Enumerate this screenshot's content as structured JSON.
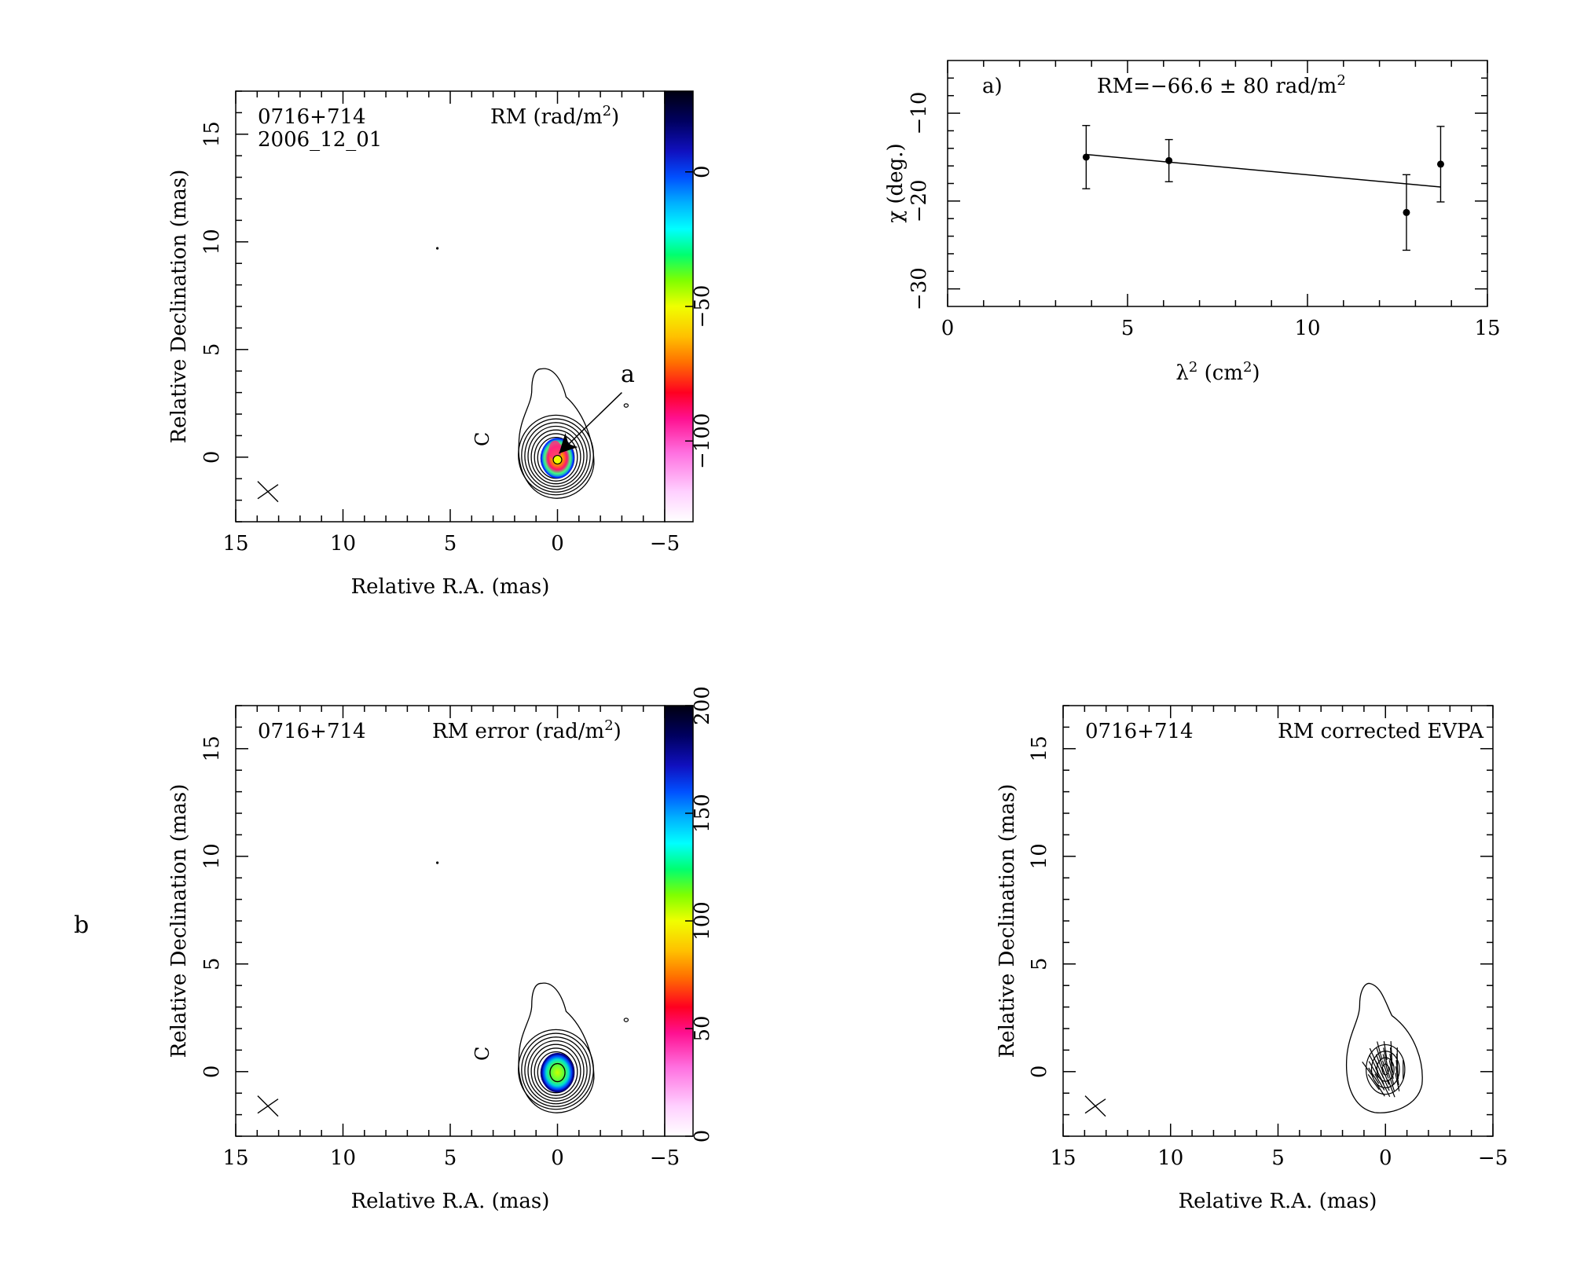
{
  "figure_label_b": "b",
  "chart_data": [
    {
      "type": "heatmap",
      "id": "rm-map",
      "source": "0716+714",
      "epoch": "2006_12_01",
      "quantity_label": "RM (rad/m",
      "quantity_sup": "2",
      "quantity_close": ")",
      "xlabel": "Relative R.A. (mas)",
      "ylabel": "Relative Declination (mas)",
      "xlim": [
        15,
        -5
      ],
      "ylim": [
        -3,
        17
      ],
      "xticks": [
        "15",
        "10",
        "5",
        "0",
        "−5"
      ],
      "yticks": [
        "0",
        "5",
        "10",
        "15"
      ],
      "colorbar_ticks": [
        "0",
        "−50",
        "−100"
      ],
      "colorbar_range": [
        -130,
        30
      ],
      "annotation": "a",
      "contour_label": "C"
    },
    {
      "type": "scatter",
      "id": "rm-fit",
      "panel_label": "a)",
      "fit_label": "RM=−66.6 ± 80 rad/m",
      "fit_sup": "2",
      "xlabel_main": "λ",
      "xlabel_sup": "2",
      "xlabel_rest": " (cm",
      "xlabel_sup2": "2",
      "xlabel_close": ")",
      "ylabel": "χ (deg.)",
      "xlim": [
        0,
        15
      ],
      "ylim": [
        -32,
        -4
      ],
      "xticks": [
        "0",
        "5",
        "10",
        "15"
      ],
      "yticks": [
        "−10",
        "−20",
        "−30"
      ],
      "points": [
        {
          "x": 3.85,
          "y": -15.0,
          "err": 3.6
        },
        {
          "x": 6.15,
          "y": -15.4,
          "err": 2.4
        },
        {
          "x": 12.75,
          "y": -21.3,
          "err": 4.3
        },
        {
          "x": 13.7,
          "y": -15.8,
          "err": 4.3
        }
      ],
      "fit": {
        "x0": 3.85,
        "y0": -14.7,
        "x1": 13.7,
        "y1": -18.4
      }
    },
    {
      "type": "heatmap",
      "id": "rm-error-map",
      "source": "0716+714",
      "quantity_label": "RM error (rad/m",
      "quantity_sup": "2",
      "quantity_close": ")",
      "xlabel": "Relative R.A. (mas)",
      "ylabel": "Relative Declination (mas)",
      "xlim": [
        15,
        -5
      ],
      "ylim": [
        -3,
        17
      ],
      "xticks": [
        "15",
        "10",
        "5",
        "0",
        "−5"
      ],
      "yticks": [
        "0",
        "5",
        "10",
        "15"
      ],
      "colorbar_ticks": [
        "0",
        "50",
        "100",
        "150",
        "200"
      ],
      "colorbar_range": [
        0,
        200
      ],
      "contour_label": "C"
    },
    {
      "type": "scatter",
      "id": "evpa-map",
      "source": "0716+714",
      "quantity_label": "RM corrected EVPA",
      "xlabel": "Relative R.A. (mas)",
      "ylabel": "Relative Declination (mas)",
      "xlim": [
        15,
        -5
      ],
      "ylim": [
        -3,
        17
      ],
      "xticks": [
        "15",
        "10",
        "5",
        "0",
        "−5"
      ],
      "yticks": [
        "0",
        "5",
        "10",
        "15"
      ]
    }
  ]
}
